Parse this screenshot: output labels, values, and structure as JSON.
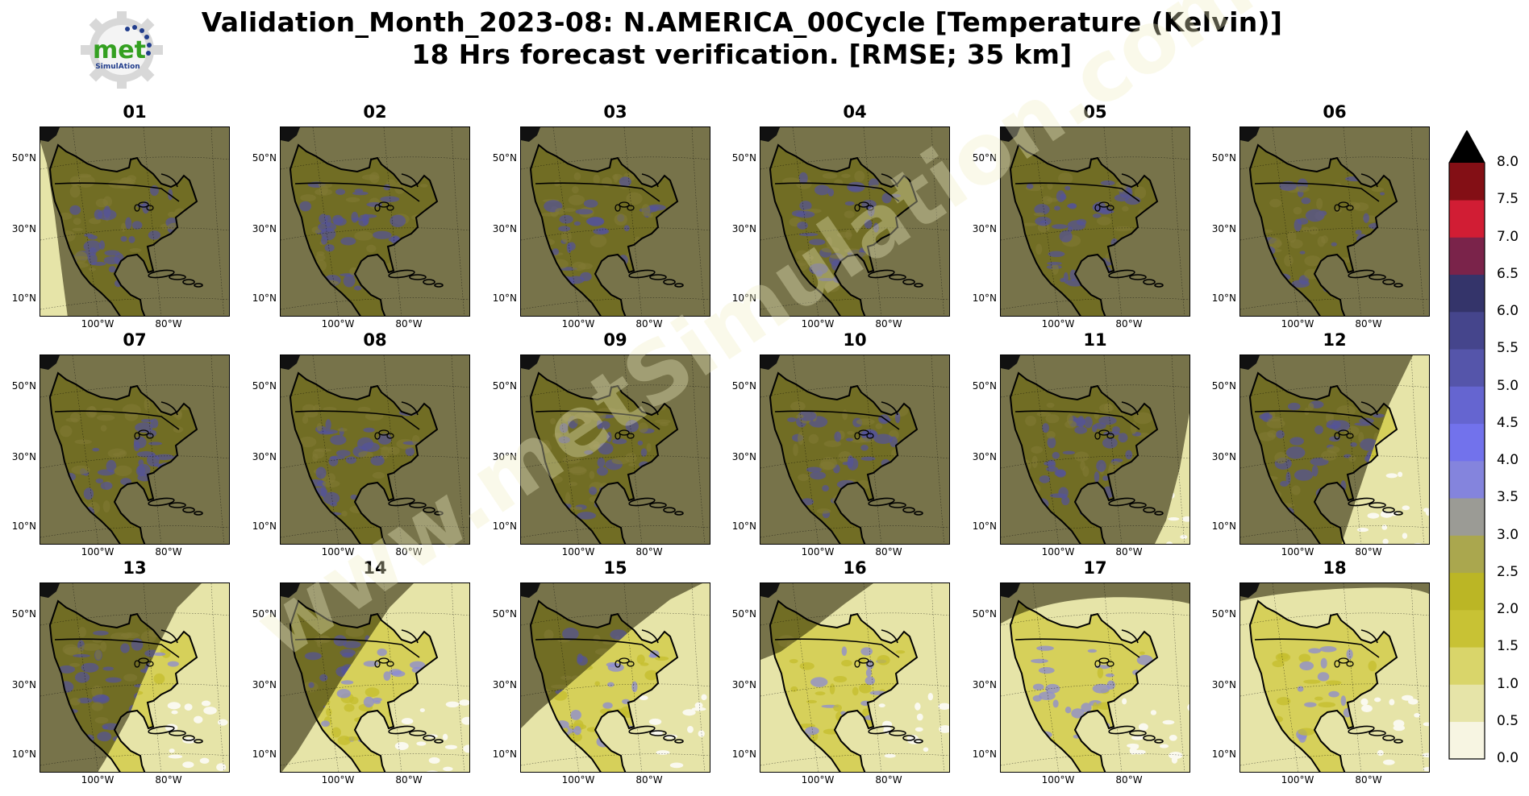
{
  "title": {
    "line1": "Validation_Month_2023-08: N.AMERICA_00Cycle [Temperature (Kelvin)]",
    "line2": "18 Hrs forecast verification.  [RMSE; 35 km]"
  },
  "logo": {
    "text_main": "met",
    "text_sub": "SimulAtion"
  },
  "watermark": "www.metSimulation.com",
  "lat_labels": [
    "50°N",
    "30°N",
    "10°N"
  ],
  "lon_labels": [
    "100°W",
    "80°W"
  ],
  "panels": [
    {
      "label": "01",
      "coverage": "left-edge"
    },
    {
      "label": "02",
      "coverage": "none"
    },
    {
      "label": "03",
      "coverage": "none"
    },
    {
      "label": "04",
      "coverage": "none"
    },
    {
      "label": "05",
      "coverage": "none"
    },
    {
      "label": "06",
      "coverage": "none"
    },
    {
      "label": "07",
      "coverage": "none"
    },
    {
      "label": "08",
      "coverage": "none"
    },
    {
      "label": "09",
      "coverage": "none"
    },
    {
      "label": "10",
      "coverage": "none"
    },
    {
      "label": "11",
      "coverage": "right-sliver"
    },
    {
      "label": "12",
      "coverage": "right-wedge"
    },
    {
      "label": "13",
      "coverage": "east"
    },
    {
      "label": "14",
      "coverage": "diagonal"
    },
    {
      "label": "15",
      "coverage": "most"
    },
    {
      "label": "16",
      "coverage": "nw-corner"
    },
    {
      "label": "17",
      "coverage": "top-band"
    },
    {
      "label": "18",
      "coverage": "top-strip"
    }
  ],
  "colorbar": {
    "ticks": [
      "0.0",
      "0.5",
      "1.0",
      "1.5",
      "2.0",
      "2.5",
      "3.0",
      "3.5",
      "4.0",
      "4.5",
      "5.0",
      "5.5",
      "6.0",
      "6.5",
      "7.0",
      "7.5",
      "8.0"
    ],
    "colors": [
      "#f7f5e2",
      "#e6e4a8",
      "#d9d56a",
      "#c8c234",
      "#bbb625",
      "#aaa74e",
      "#9b9b95",
      "#8484dd",
      "#7272ec",
      "#6565d0",
      "#5555aa",
      "#45458c",
      "#34346a",
      "#7a234a",
      "#d11d34",
      "#830f15"
    ],
    "extend_color": "#000000"
  }
}
